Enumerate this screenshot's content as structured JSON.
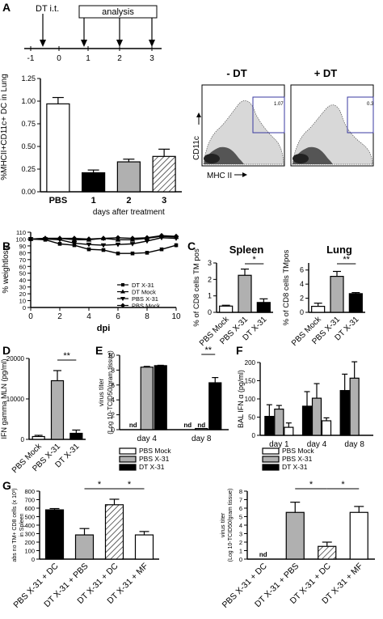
{
  "panel_labels": {
    "a": "A",
    "b": "B",
    "c": "C",
    "d": "D",
    "e": "E",
    "f": "F",
    "g": "G"
  },
  "timeline": {
    "dt_label": "DT i.t.",
    "analysis_label": "analysis",
    "ticks": [
      "-1",
      "0",
      "1",
      "2",
      "3"
    ]
  },
  "flow": {
    "minus_title": "- DT",
    "plus_title": "+ DT",
    "minus_gate_value": "1.07",
    "plus_gate_value": "0.3",
    "ylabel": "CD11c",
    "xlabel": "MHC II"
  },
  "significance": {
    "single": "*",
    "double": "**"
  },
  "nd_label": "nd",
  "colors": {
    "white": "#ffffff",
    "black": "#000000",
    "grey": "#b0b0b0",
    "line": "#000000"
  },
  "chart_data": [
    {
      "id": "A",
      "type": "bar",
      "ylabel": "%MHCII+CD11c+ DC in Lung",
      "xlabel": "days after treatment",
      "categories": [
        "PBS",
        "1",
        "2",
        "3"
      ],
      "values": [
        0.97,
        0.21,
        0.33,
        0.39
      ],
      "errors": [
        0.07,
        0.03,
        0.03,
        0.08
      ],
      "fills": [
        "white",
        "black",
        "grey",
        "hatch"
      ],
      "ylim": [
        0,
        1.25
      ],
      "yticks": [
        "0.00",
        "0.25",
        "0.50",
        "0.75",
        "1.00",
        "1.25"
      ]
    },
    {
      "id": "B",
      "type": "line",
      "ylabel": "% weightloss",
      "xlabel": "dpi",
      "x": [
        0,
        1,
        2,
        3,
        4,
        5,
        6,
        7,
        8,
        9,
        10
      ],
      "xlim": [
        0,
        10
      ],
      "ylim": [
        0,
        110
      ],
      "xticks": [
        "0",
        "2",
        "4",
        "6",
        "8",
        "10"
      ],
      "yticks": [
        "0",
        "10",
        "20",
        "30",
        "40",
        "50",
        "60",
        "70",
        "80",
        "90",
        "100",
        "110"
      ],
      "series": [
        {
          "name": "DT X-31",
          "marker": "square",
          "values": [
            100,
            99,
            93,
            91,
            85,
            84,
            79,
            79,
            80,
            85,
            91
          ]
        },
        {
          "name": "DT Mock",
          "marker": "triangle-up",
          "values": [
            100,
            101,
            101,
            99,
            99,
            101,
            99,
            99,
            101,
            104,
            103
          ]
        },
        {
          "name": "PBS X-31",
          "marker": "triangle-down",
          "values": [
            100,
            100,
            99,
            94,
            92,
            91,
            92,
            93,
            97,
            102,
            101
          ]
        },
        {
          "name": "PBS Mock",
          "marker": "diamond",
          "values": [
            100,
            101,
            101,
            101,
            100,
            101,
            102,
            101,
            102,
            105,
            104
          ]
        }
      ]
    },
    {
      "id": "C-spleen",
      "type": "bar",
      "title": "Spleen",
      "ylabel": "% of CD8 cells TM pos",
      "categories": [
        "PBS Mock",
        "PBS X-31",
        "DT X-31"
      ],
      "values": [
        0.38,
        2.25,
        0.6
      ],
      "errors": [
        0.05,
        0.38,
        0.22
      ],
      "fills": [
        "white",
        "grey",
        "black"
      ],
      "ylim": [
        0,
        3
      ],
      "yticks": [
        "0",
        "1",
        "2",
        "3"
      ]
    },
    {
      "id": "C-lung",
      "type": "bar",
      "title": "Lung",
      "ylabel": "% of CD8 cells TMpos",
      "categories": [
        "PBS Mock",
        "PBS X-31",
        "DT X-31"
      ],
      "values": [
        0.85,
        5.1,
        2.65
      ],
      "errors": [
        0.45,
        0.7,
        0.15
      ],
      "fills": [
        "white",
        "grey",
        "black"
      ],
      "ylim": [
        0,
        7
      ],
      "yticks": [
        "0",
        "2",
        "4",
        "6"
      ]
    },
    {
      "id": "D",
      "type": "bar",
      "ylabel": "IFN gamma MLN (pg/ml)",
      "categories": [
        "PBS Mock",
        "PBS X-31",
        "DT X-31"
      ],
      "values": [
        700,
        14500,
        1500
      ],
      "errors": [
        300,
        2500,
        800
      ],
      "fills": [
        "white",
        "grey",
        "black"
      ],
      "ylim": [
        0,
        20000
      ],
      "yticks": [
        "0",
        "10000",
        "20000"
      ]
    },
    {
      "id": "E",
      "type": "bar",
      "ylabel": "virus titer (Log 10-TCID50/gram tissue)",
      "categories": [
        "day 4",
        "day 8"
      ],
      "series": [
        {
          "name": "PBS Mock",
          "values": [
            0,
            0
          ],
          "nd": [
            true,
            true
          ]
        },
        {
          "name": "PBS X-31",
          "values": [
            8.4,
            0.05
          ],
          "errors": [
            0.1,
            0
          ],
          "nd": [
            false,
            true
          ]
        },
        {
          "name": "DT X-31",
          "values": [
            8.6,
            6.3
          ],
          "errors": [
            0.05,
            0.7
          ],
          "nd": [
            false,
            false
          ]
        }
      ],
      "fills": [
        "white",
        "grey",
        "black"
      ],
      "ylim": [
        0,
        10
      ],
      "yticks": [
        "0",
        "2",
        "4",
        "6",
        "8",
        "10"
      ]
    },
    {
      "id": "F",
      "type": "bar",
      "ylabel": "BAL IFN α (pg/ml)",
      "categories": [
        "day 1",
        "day 4",
        "day 8"
      ],
      "series": [
        {
          "name": "PBS Mock",
          "values": [
            22,
            40,
            0
          ],
          "errors": [
            12,
            8,
            0
          ]
        },
        {
          "name": "PBS X-31",
          "values": [
            72,
            102,
            157
          ],
          "errors": [
            10,
            40,
            45
          ]
        },
        {
          "name": "DT X-31",
          "values": [
            52,
            80,
            123
          ],
          "errors": [
            32,
            40,
            45
          ]
        }
      ],
      "plot_order": [
        "DT X-31",
        "PBS X-31",
        "PBS Mock"
      ],
      "fills": [
        "white",
        "grey",
        "black"
      ],
      "ylim": [
        0,
        200
      ],
      "yticks": [
        "0",
        "50",
        "100",
        "150",
        "200"
      ]
    },
    {
      "id": "G-left",
      "type": "bar",
      "ylabel": "abs no TM+ CD8 cells (x 10³) in Spleen",
      "categories": [
        "PBS X-31 + DC",
        "DT X-31 + PBS",
        "DT X-31 + DC",
        "DT X-31 + MF"
      ],
      "values": [
        580,
        285,
        640,
        285
      ],
      "errors": [
        15,
        75,
        65,
        40
      ],
      "fills": [
        "black",
        "grey",
        "hatch",
        "white"
      ],
      "ylim": [
        0,
        800
      ],
      "yticks": [
        "0",
        "100",
        "200",
        "300",
        "400",
        "500",
        "600",
        "700",
        "800"
      ]
    },
    {
      "id": "G-right",
      "type": "bar",
      "ylabel": "virus titer (Log 10-TCID50/gram tissue)",
      "categories": [
        "PBS X-31 + DC",
        "DT X-31 + PBS",
        "DT X-31 + DC",
        "DT X-31 + MF"
      ],
      "values": [
        0,
        5.5,
        1.5,
        5.5
      ],
      "errors": [
        0,
        1.2,
        0.5,
        0.7
      ],
      "nd": [
        true,
        false,
        false,
        false
      ],
      "fills": [
        "white",
        "grey",
        "hatch",
        "white"
      ],
      "ylim": [
        0,
        8
      ],
      "yticks": [
        "0",
        "1",
        "2",
        "3",
        "4",
        "5",
        "6",
        "7",
        "8"
      ]
    }
  ]
}
